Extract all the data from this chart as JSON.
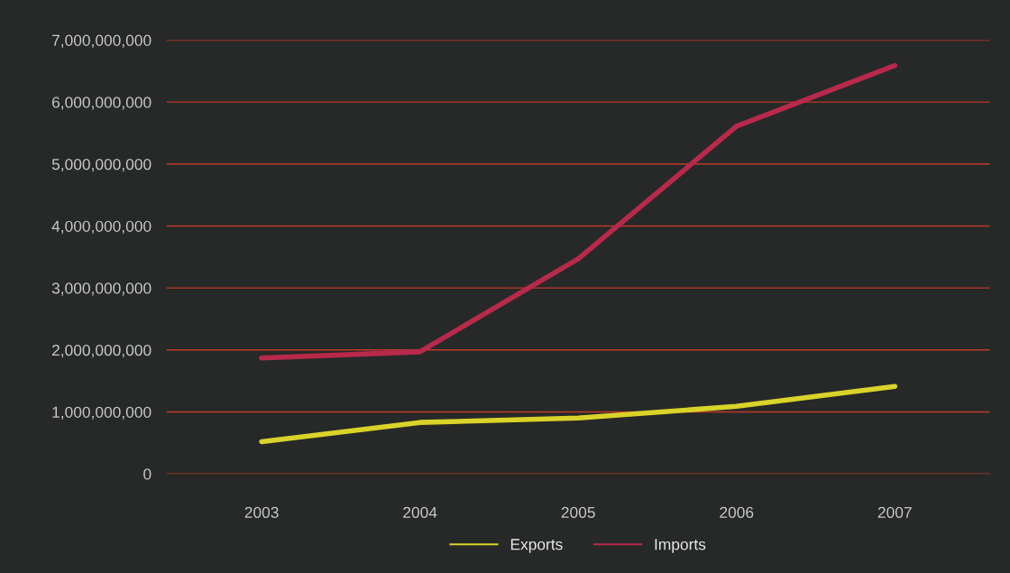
{
  "chart_data": {
    "type": "line",
    "categories": [
      "2003",
      "2004",
      "2005",
      "2006",
      "2007"
    ],
    "series": [
      {
        "name": "Exports",
        "color": "#d9d32a",
        "values": [
          520000000,
          830000000,
          900000000,
          1090000000,
          1410000000
        ]
      },
      {
        "name": "Imports",
        "color": "#b8294c",
        "values": [
          1870000000,
          1970000000,
          3470000000,
          5610000000,
          6590000000
        ]
      }
    ],
    "ylim": [
      0,
      7000000000
    ],
    "yticks": [
      {
        "value": 0,
        "label": "0"
      },
      {
        "value": 1000000000,
        "label": "1,000,000,000"
      },
      {
        "value": 2000000000,
        "label": "2,000,000,000"
      },
      {
        "value": 3000000000,
        "label": "3,000,000,000"
      },
      {
        "value": 4000000000,
        "label": "4,000,000,000"
      },
      {
        "value": 5000000000,
        "label": "5,000,000,000"
      },
      {
        "value": 6000000000,
        "label": "6,000,000,000"
      },
      {
        "value": 7000000000,
        "label": "7,000,000,000"
      }
    ],
    "grid": "y",
    "legend": "bottom"
  }
}
